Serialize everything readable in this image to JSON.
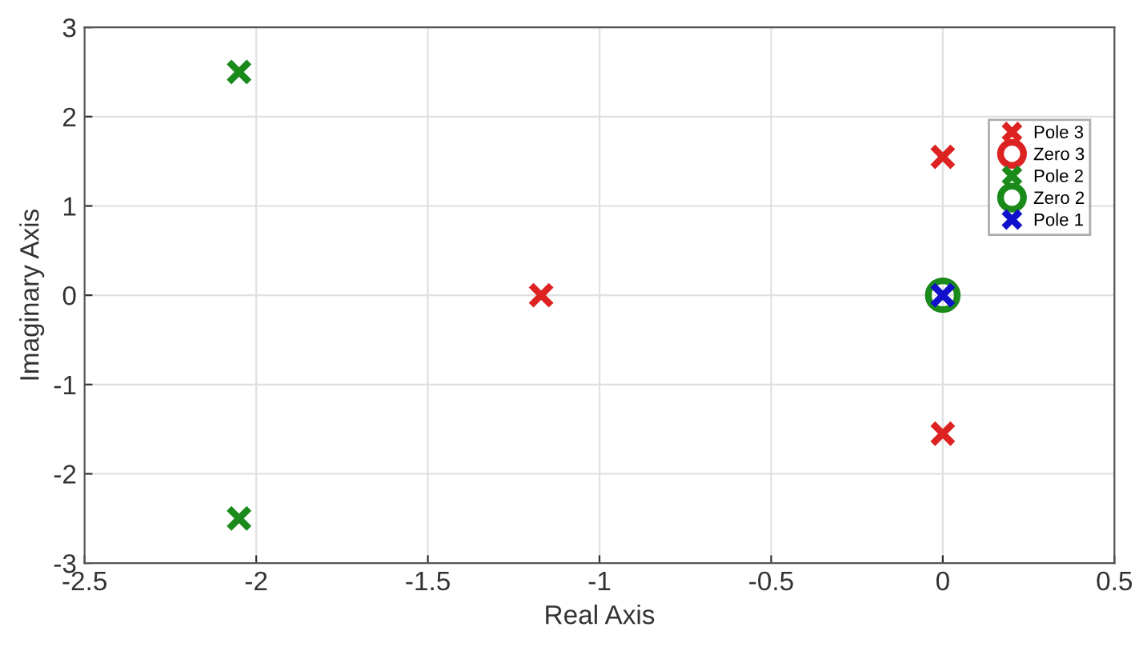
{
  "chart_data": {
    "type": "scatter",
    "xlabel": "Real Axis",
    "ylabel": "Imaginary Axis",
    "xlim": [
      -2.5,
      0.5
    ],
    "xticks": [
      -2.5,
      -2,
      -1.5,
      -1,
      -0.5,
      0,
      0.5
    ],
    "ylim": [
      -3,
      3
    ],
    "yticks": [
      -3,
      -2,
      -1,
      0,
      1,
      2,
      3
    ],
    "grid": true,
    "legend": "right",
    "series": [
      {
        "name": "Pole 3",
        "color": "#dd2222",
        "marker": "cross",
        "x": [
          -1.17,
          0,
          0
        ],
        "values": [
          0,
          1.55,
          -1.55
        ]
      },
      {
        "name": "Zero 3",
        "color": "#dd2222",
        "marker": "circle"
      },
      {
        "name": "Pole 2",
        "color": "#1a8a1a",
        "marker": "cross",
        "x": [
          -2.05,
          -2.05
        ],
        "values": [
          2.5,
          -2.5
        ]
      },
      {
        "name": "Zero 2",
        "color": "#1a8a1a",
        "marker": "circle",
        "x": [
          0
        ],
        "values": [
          0
        ]
      },
      {
        "name": "Pole 1",
        "color": "#1111cc",
        "marker": "cross",
        "x": [
          0
        ],
        "values": [
          0
        ]
      }
    ]
  }
}
